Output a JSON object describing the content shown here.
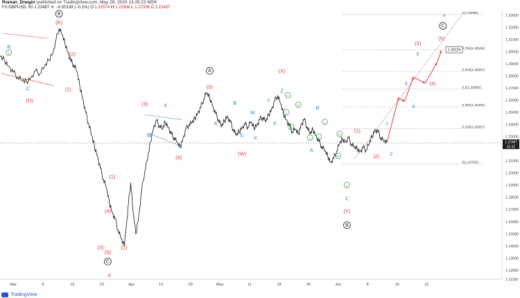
{
  "header": {
    "author": "Roman_Dnegin",
    "published": "published on TradingView.com, May 28, 2020 13:26:23 MSK",
    "symbol": "FX:GBPUSD, 60",
    "last": "1.22487",
    "change_arrow": "▼",
    "change": "−0.00138 (−0.1%)",
    "o_label": "O:",
    "o": "1.22574",
    "h_label": "H:",
    "h": "1.22608",
    "l_label": "L:",
    "l": "1.22336",
    "c_label": "C:",
    "c": "1.22487"
  },
  "footer": {
    "brand": "TradingView"
  },
  "colors": {
    "red": "#e53935",
    "blue": "#1e88e5",
    "green": "#43a047",
    "black": "#222222",
    "pink": "#ef5350"
  },
  "chart_data": {
    "type": "line",
    "ylim": [
      1.1125,
      1.3345
    ],
    "x_tick_labels": [
      "Mar",
      "9",
      "16",
      "23",
      "Apr",
      "13",
      "20",
      "May",
      "11",
      "18",
      "25",
      "Jun",
      "8",
      "15",
      "22"
    ],
    "y_tick_labels": [
      "1.33000",
      "1.32000",
      "1.31000",
      "1.30000",
      "1.29000",
      "1.28000",
      "1.27000",
      "1.26000",
      "1.25000",
      "1.24000",
      "1.23000",
      "1.21000",
      "1.20000",
      "1.19000",
      "1.18000",
      "1.17000",
      "1.16000",
      "1.15000",
      "1.14000",
      "1.13000",
      "1.12000",
      "1.11250"
    ],
    "y_tick_values": [
      1.33,
      1.32,
      1.31,
      1.3,
      1.29,
      1.28,
      1.27,
      1.26,
      1.25,
      1.24,
      1.23,
      1.21,
      1.2,
      1.19,
      1.18,
      1.17,
      1.16,
      1.15,
      1.14,
      1.13,
      1.12,
      1.1125
    ],
    "current_price": {
      "value": 1.22487,
      "label": "1.22487",
      "time_label": "33:42"
    },
    "price_series": [
      [
        0,
        1.296
      ],
      [
        0.3,
        1.293
      ],
      [
        0.6,
        1.288
      ],
      [
        0.9,
        1.283
      ],
      [
        1.2,
        1.279
      ],
      [
        1.5,
        1.276
      ],
      [
        1.8,
        1.275
      ],
      [
        2.1,
        1.279
      ],
      [
        2.4,
        1.284
      ],
      [
        2.7,
        1.282
      ],
      [
        3.0,
        1.287
      ],
      [
        3.3,
        1.293
      ],
      [
        3.6,
        1.3
      ],
      [
        3.8,
        1.31
      ],
      [
        4.0,
        1.319
      ],
      [
        4.2,
        1.314
      ],
      [
        4.4,
        1.307
      ],
      [
        4.6,
        1.3
      ],
      [
        4.8,
        1.292
      ],
      [
        5.0,
        1.289
      ],
      [
        5.2,
        1.284
      ],
      [
        5.4,
        1.272
      ],
      [
        5.6,
        1.262
      ],
      [
        5.8,
        1.25
      ],
      [
        6.0,
        1.241
      ],
      [
        6.2,
        1.231
      ],
      [
        6.4,
        1.222
      ],
      [
        6.6,
        1.214
      ],
      [
        6.8,
        1.204
      ],
      [
        7.0,
        1.195
      ],
      [
        7.2,
        1.188
      ],
      [
        7.4,
        1.176
      ],
      [
        7.6,
        1.168
      ],
      [
        7.8,
        1.162
      ],
      [
        8.0,
        1.153
      ],
      [
        8.2,
        1.146
      ],
      [
        8.4,
        1.14
      ],
      [
        8.55,
        1.156
      ],
      [
        8.7,
        1.175
      ],
      [
        8.85,
        1.192
      ],
      [
        9.0,
        1.17
      ],
      [
        9.2,
        1.15
      ],
      [
        9.4,
        1.165
      ],
      [
        9.6,
        1.186
      ],
      [
        9.8,
        1.201
      ],
      [
        10.0,
        1.212
      ],
      [
        10.2,
        1.226
      ],
      [
        10.4,
        1.238
      ],
      [
        10.6,
        1.243
      ],
      [
        10.8,
        1.239
      ],
      [
        11.0,
        1.236
      ],
      [
        11.2,
        1.242
      ],
      [
        11.4,
        1.238
      ],
      [
        11.6,
        1.232
      ],
      [
        11.8,
        1.229
      ],
      [
        12.0,
        1.225
      ],
      [
        12.2,
        1.221
      ],
      [
        12.4,
        1.229
      ],
      [
        12.6,
        1.236
      ],
      [
        12.8,
        1.24
      ],
      [
        13.0,
        1.241
      ],
      [
        13.2,
        1.245
      ],
      [
        13.4,
        1.25
      ],
      [
        13.6,
        1.254
      ],
      [
        13.8,
        1.261
      ],
      [
        14.0,
        1.266
      ],
      [
        14.2,
        1.262
      ],
      [
        14.4,
        1.256
      ],
      [
        14.6,
        1.249
      ],
      [
        14.8,
        1.244
      ],
      [
        15.0,
        1.238
      ],
      [
        15.2,
        1.243
      ],
      [
        15.4,
        1.247
      ],
      [
        15.6,
        1.242
      ],
      [
        15.8,
        1.236
      ],
      [
        16.0,
        1.231
      ],
      [
        16.2,
        1.234
      ],
      [
        16.4,
        1.238
      ],
      [
        16.6,
        1.24
      ],
      [
        16.8,
        1.238
      ],
      [
        17.0,
        1.242
      ],
      [
        17.2,
        1.237
      ],
      [
        17.4,
        1.24
      ],
      [
        17.6,
        1.244
      ],
      [
        17.8,
        1.246
      ],
      [
        18.0,
        1.242
      ],
      [
        18.2,
        1.248
      ],
      [
        18.4,
        1.253
      ],
      [
        18.6,
        1.259
      ],
      [
        18.8,
        1.264
      ],
      [
        19.0,
        1.257
      ],
      [
        19.2,
        1.249
      ],
      [
        19.4,
        1.244
      ],
      [
        19.6,
        1.239
      ],
      [
        19.8,
        1.234
      ],
      [
        20.0,
        1.236
      ],
      [
        20.2,
        1.232
      ],
      [
        20.4,
        1.24
      ],
      [
        20.6,
        1.244
      ],
      [
        20.8,
        1.238
      ],
      [
        21.0,
        1.232
      ],
      [
        21.2,
        1.236
      ],
      [
        21.4,
        1.231
      ],
      [
        21.6,
        1.226
      ],
      [
        21.8,
        1.222
      ],
      [
        22.0,
        1.218
      ],
      [
        22.2,
        1.214
      ],
      [
        22.4,
        1.209
      ],
      [
        22.6,
        1.212
      ],
      [
        22.8,
        1.218
      ],
      [
        23.0,
        1.224
      ],
      [
        23.2,
        1.228
      ],
      [
        23.4,
        1.226
      ],
      [
        23.6,
        1.229
      ],
      [
        23.8,
        1.224
      ],
      [
        24.0,
        1.221
      ],
      [
        24.2,
        1.22
      ],
      [
        24.4,
        1.218
      ],
      [
        24.6,
        1.221
      ],
      [
        24.8,
        1.219
      ],
      [
        25.0,
        1.224
      ],
      [
        25.2,
        1.23
      ],
      [
        25.4,
        1.236
      ],
      [
        25.6,
        1.234
      ],
      [
        25.8,
        1.229
      ],
      [
        26.0,
        1.226
      ],
      [
        26.2,
        1.2249
      ]
    ],
    "projection": [
      [
        26.2,
        1.2249
      ],
      [
        27.0,
        1.262
      ],
      [
        27.4,
        1.259
      ],
      [
        28.0,
        1.279
      ],
      [
        28.8,
        1.274
      ],
      [
        29.6,
        1.291
      ],
      [
        29.9,
        1.301
      ]
    ],
    "fib_levels": [
      {
        "label": "1(1.33058)",
        "value": 1.33058
      },
      {
        "label": "0.764(1.30154)",
        "value": 1.30154
      },
      {
        "label": "0.618(1.28357)",
        "value": 1.28357
      },
      {
        "label": "0.5(1.26905)",
        "value": 1.26905
      },
      {
        "label": "0.382(1.25453)",
        "value": 1.25453
      },
      {
        "label": "0.236(1.23657)",
        "value": 1.23657
      },
      {
        "label": "0(1.20753)",
        "value": 1.20753
      }
    ],
    "target_box": {
      "label": "1.30129",
      "value": 1.30129
    },
    "annotations": [
      {
        "t": "B",
        "x": 0.6,
        "y": 1.303,
        "c": "blue"
      },
      {
        "t": "y",
        "x": 0.6,
        "y": 1.298,
        "c": "green",
        "circ": true
      },
      {
        "t": "C",
        "x": 1.9,
        "y": 1.269,
        "c": "blue"
      },
      {
        "t": "(D)",
        "x": 2.0,
        "y": 1.259,
        "c": "red"
      },
      {
        "t": "B",
        "x": 4.0,
        "y": 1.33,
        "c": "black",
        "circ": true
      },
      {
        "t": "(E)",
        "x": 4.0,
        "y": 1.323,
        "c": "red"
      },
      {
        "t": "(2)",
        "x": 4.9,
        "y": 1.297,
        "c": "red"
      },
      {
        "t": "(1)",
        "x": 4.6,
        "y": 1.268,
        "c": "red"
      },
      {
        "t": "(1)",
        "x": 7.6,
        "y": 1.196,
        "c": "red"
      },
      {
        "t": "(4)",
        "x": 7.3,
        "y": 1.168,
        "c": "red"
      },
      {
        "t": "(3)",
        "x": 6.8,
        "y": 1.138,
        "c": "red"
      },
      {
        "t": "(5)",
        "x": 7.3,
        "y": 1.134,
        "c": "red"
      },
      {
        "t": "(2)",
        "x": 8.4,
        "y": 1.138,
        "c": "red"
      },
      {
        "t": "C",
        "x": 7.3,
        "y": 1.126,
        "c": "black",
        "circ": true
      },
      {
        "t": "d",
        "x": 7.4,
        "y": 1.115,
        "c": "pink"
      },
      {
        "t": "(3)",
        "x": 9.8,
        "y": 1.256,
        "c": "red"
      },
      {
        "t": "X",
        "x": 11.2,
        "y": 1.255,
        "c": "blue"
      },
      {
        "t": "W",
        "x": 10.1,
        "y": 1.23,
        "c": "blue"
      },
      {
        "t": "Y",
        "x": 12.2,
        "y": 1.222,
        "c": "blue"
      },
      {
        "t": "(4)",
        "x": 12.1,
        "y": 1.212,
        "c": "red"
      },
      {
        "t": "A",
        "x": 14.2,
        "y": 1.283,
        "c": "black",
        "circ": true
      },
      {
        "t": "(5)",
        "x": 14.2,
        "y": 1.27,
        "c": "red"
      },
      {
        "t": "A",
        "x": 14.6,
        "y": 1.24,
        "c": "blue"
      },
      {
        "t": "B",
        "x": 15.9,
        "y": 1.257,
        "c": "blue"
      },
      {
        "t": "C",
        "x": 16.4,
        "y": 1.23,
        "c": "blue"
      },
      {
        "t": "W",
        "x": 17.1,
        "y": 1.249,
        "c": "blue"
      },
      {
        "t": "Y",
        "x": 18.2,
        "y": 1.259,
        "c": "blue"
      },
      {
        "t": "X",
        "x": 17.3,
        "y": 1.228,
        "c": "blue"
      },
      {
        "t": "X",
        "x": 18.6,
        "y": 1.24,
        "c": "blue"
      },
      {
        "t": "(W)",
        "x": 16.4,
        "y": 1.215,
        "c": "red"
      },
      {
        "t": "(X)",
        "x": 19.1,
        "y": 1.283,
        "c": "red"
      },
      {
        "t": "Z",
        "x": 19.1,
        "y": 1.267,
        "c": "blue"
      },
      {
        "t": "ii",
        "x": 19.5,
        "y": 1.263,
        "c": "green",
        "circ": true
      },
      {
        "t": "iv",
        "x": 20.2,
        "y": 1.255,
        "c": "green",
        "circ": true
      },
      {
        "t": "i",
        "x": 19.4,
        "y": 1.249,
        "c": "green",
        "circ": true
      },
      {
        "t": "iii",
        "x": 19.7,
        "y": 1.237,
        "c": "green",
        "circ": true
      },
      {
        "t": "B",
        "x": 21.5,
        "y": 1.253,
        "c": "blue"
      },
      {
        "t": "ii",
        "x": 22.0,
        "y": 1.241,
        "c": "green",
        "circ": true
      },
      {
        "t": "iv",
        "x": 23.0,
        "y": 1.231,
        "c": "green",
        "circ": true
      },
      {
        "t": "v",
        "x": 21.0,
        "y": 1.228,
        "c": "green",
        "circ": true
      },
      {
        "t": "i",
        "x": 21.6,
        "y": 1.229,
        "c": "green",
        "circ": true
      },
      {
        "t": "A",
        "x": 21.1,
        "y": 1.218,
        "c": "blue"
      },
      {
        "t": "iii",
        "x": 22.9,
        "y": 1.213,
        "c": "green",
        "circ": true
      },
      {
        "t": "v",
        "x": 23.5,
        "y": 1.189,
        "c": "green",
        "circ": true
      },
      {
        "t": "C",
        "x": 23.5,
        "y": 1.178,
        "c": "blue"
      },
      {
        "t": "(Y)",
        "x": 23.5,
        "y": 1.168,
        "c": "red"
      },
      {
        "t": "B",
        "x": 23.5,
        "y": 1.156,
        "c": "black",
        "circ": true
      },
      {
        "t": "(1)",
        "x": 24.2,
        "y": 1.234,
        "c": "red"
      },
      {
        "t": "(2)",
        "x": 25.5,
        "y": 1.213,
        "c": "red"
      },
      {
        "t": "1",
        "x": 26.2,
        "y": 1.24,
        "c": "blue"
      },
      {
        "t": "2",
        "x": 26.5,
        "y": 1.215,
        "c": "blue"
      },
      {
        "t": "3",
        "x": 27.5,
        "y": 1.273,
        "c": "blue"
      },
      {
        "t": "4",
        "x": 28.0,
        "y": 1.254,
        "c": "blue"
      },
      {
        "t": "5",
        "x": 28.3,
        "y": 1.297,
        "c": "blue"
      },
      {
        "t": "(3)",
        "x": 28.3,
        "y": 1.306,
        "c": "red"
      },
      {
        "t": "(4)",
        "x": 29.3,
        "y": 1.273,
        "c": "red"
      },
      {
        "t": "(5)",
        "x": 29.9,
        "y": 1.31,
        "c": "red"
      },
      {
        "t": "C",
        "x": 30.0,
        "y": 1.32,
        "c": "black",
        "circ": true
      },
      {
        "t": "e",
        "x": 30.1,
        "y": 1.329,
        "c": "pink"
      }
    ],
    "channels": [
      {
        "c": "red",
        "pts": [
          [
            0.2,
            1.315
          ],
          [
            3.2,
            1.311
          ]
        ]
      },
      {
        "c": "red",
        "pts": [
          [
            0.1,
            1.282
          ],
          [
            3.6,
            1.272
          ]
        ]
      },
      {
        "c": "blue",
        "pts": [
          [
            9.8,
            1.248
          ],
          [
            12.3,
            1.244
          ]
        ]
      },
      {
        "c": "blue",
        "pts": [
          [
            10.0,
            1.233
          ],
          [
            12.3,
            1.222
          ]
        ]
      }
    ]
  }
}
